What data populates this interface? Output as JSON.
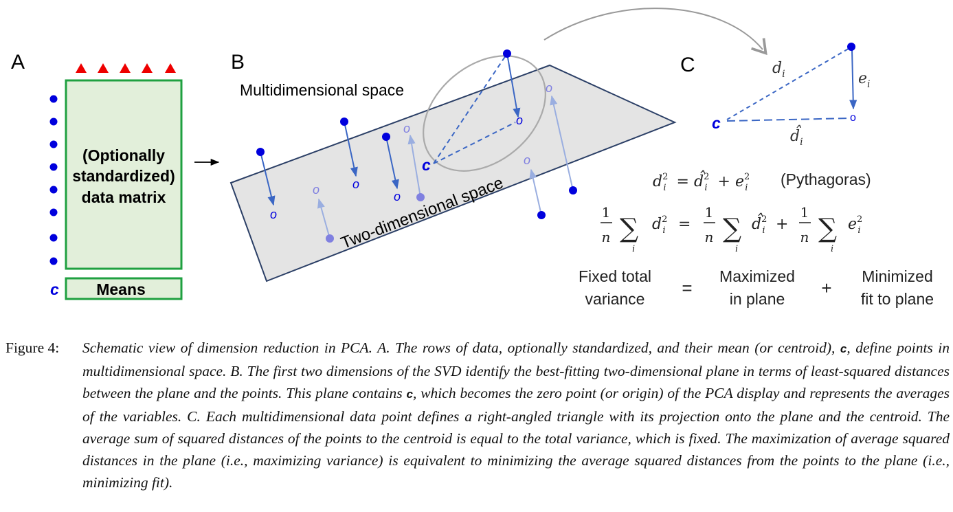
{
  "panel_a": {
    "label": "A",
    "matrix_text": [
      "(Optionally",
      "standardized)",
      "data matrix"
    ],
    "means_label": "Means",
    "centroid_label": "c",
    "arrow": "→"
  },
  "panel_b": {
    "label": "B",
    "space_label": "Multidimensional space",
    "plane_label": "Two-dimensional space",
    "centroid_label": "c",
    "projection_marker": "o"
  },
  "panel_c": {
    "label": "C",
    "centroid_label": "c",
    "projection_marker": "o",
    "d_label": "d",
    "d_sub": "i",
    "dhat_label": "d̂",
    "dhat_sub": "i",
    "e_label": "e",
    "e_sub": "i",
    "pythagoras_note": "(Pythagoras)",
    "fixed_total_variance": [
      "Fixed total",
      "variance"
    ],
    "maximized_in_plane": [
      "Maximized",
      "in plane"
    ],
    "minimized_fit": [
      "Minimized",
      "fit to plane"
    ],
    "eq_sign": "=",
    "plus_sign": "+"
  },
  "caption": {
    "figure_label": "Figure 4:",
    "text_1": "Schematic view of dimension reduction in PCA. A. The rows of data, optionally standardized, and their mean (or centroid), ",
    "c1": "c",
    "text_2": ", define points in multidimensional space. B. The first two dimensions of the SVD identify the best-fitting two-dimensional plane in terms of least-squared distances between the plane and the points. This plane contains ",
    "c2": "c",
    "text_3": ", which becomes the zero point (or origin) of the PCA display and represents the averages of the variables. C. Each multidimensional data point defines a right-angled triangle with its projection onto the plane and the centroid. The average sum of squared distances of the points to the centroid is equal to the total variance, which is fixed. The maximization of average squared distances in the plane (i.e., maximizing variance) is equivalent to minimizing the average squared distances from the points to the plane (i.e., minimizing fit)."
  },
  "colors": {
    "point_blue": "#0000dd",
    "faded_point": "#8080e0",
    "arrow_blue": "#3a66c4",
    "faded_arrow": "#9aaee0",
    "matrix_fill": "#e2efda",
    "matrix_border": "#1fa040",
    "triangle_red": "#ee0000",
    "plane_fill": "#e4e4e4",
    "plane_border": "#2b3f66"
  }
}
